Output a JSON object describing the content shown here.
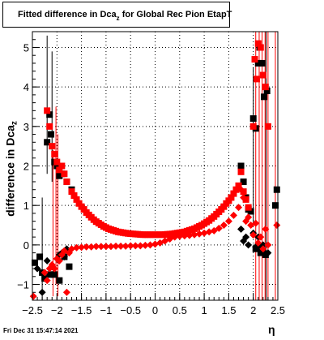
{
  "title": "Fitted difference in Dca",
  "title_subscript": "z",
  "title_suffix": " for Global Rec Pion EtapT",
  "ylabel": "difference in Dca",
  "ylabel_subscript": "z",
  "xlabel": "η",
  "datestamp": "Fri Dec 31 15:47:14 2021",
  "colors": {
    "series_black": "#000000",
    "series_red": "#ff0000",
    "grid": "#000000"
  },
  "chart_data": {
    "type": "scatter",
    "xlim": [
      -2.5,
      2.5
    ],
    "ylim": [
      -1.4,
      5.4
    ],
    "grid": true,
    "x_ticks": [
      -2.5,
      -2,
      -1.5,
      -1,
      -0.5,
      0,
      0.5,
      1,
      1.5,
      2,
      2.5
    ],
    "x_tick_labels": [
      "−2.5",
      "−2",
      "−1.5",
      "−1",
      "−0.5",
      "0",
      "0.5",
      "1",
      "1.5",
      "2",
      "2.5"
    ],
    "y_ticks": [
      -1,
      0,
      1,
      2,
      3,
      4,
      5
    ],
    "y_tick_labels": [
      "−1",
      "0",
      "1",
      "2",
      "3",
      "4",
      "5"
    ],
    "series": [
      {
        "color": "#000000",
        "marker": "square",
        "points": [
          [
            -2.45,
            -0.45
          ],
          [
            -2.35,
            -0.3
          ],
          [
            -2.3,
            -0.7
          ],
          [
            -2.25,
            -0.85
          ],
          [
            -2.2,
            2.6
          ],
          [
            -2.15,
            3.3
          ],
          [
            -2.12,
            2.8
          ],
          [
            -2.05,
            2.1
          ],
          [
            -2.0,
            2.0
          ],
          [
            -1.95,
            1.75
          ],
          [
            -1.9,
            1.8
          ],
          [
            -1.8,
            1.6
          ],
          [
            -1.7,
            1.4
          ],
          [
            -2.15,
            -0.75
          ],
          [
            -2.05,
            -0.75
          ],
          [
            -1.95,
            -0.9
          ],
          [
            -1.85,
            -0.3
          ],
          [
            -1.75,
            -0.55
          ],
          [
            1.75,
            2.0
          ],
          [
            1.8,
            1.6
          ],
          [
            1.85,
            1.2
          ],
          [
            1.9,
            0.9
          ],
          [
            1.95,
            0.85
          ],
          [
            2.0,
            3.2
          ],
          [
            2.05,
            2.95
          ],
          [
            2.1,
            4.6
          ],
          [
            2.13,
            5.0
          ],
          [
            2.18,
            4.6
          ],
          [
            2.22,
            3.75
          ],
          [
            2.28,
            3.9
          ],
          [
            2.05,
            -0.1
          ],
          [
            2.1,
            -0.05
          ],
          [
            2.15,
            -0.2
          ],
          [
            2.2,
            -0.15
          ],
          [
            2.25,
            -0.25
          ],
          [
            2.48,
            1.4
          ],
          [
            2.45,
            1.0
          ]
        ]
      },
      {
        "color": "#ff0000",
        "marker": "square",
        "points": [
          [
            -2.2,
            3.4
          ],
          [
            -2.15,
            3.0
          ],
          [
            -2.1,
            2.5
          ],
          [
            -2.05,
            2.3
          ],
          [
            -2.0,
            2.1
          ],
          [
            -1.95,
            1.9
          ],
          [
            -1.9,
            2.0
          ],
          [
            -1.85,
            1.8
          ],
          [
            -1.8,
            1.6
          ],
          [
            -1.7,
            1.35
          ],
          [
            -1.65,
            1.25
          ],
          [
            -1.6,
            1.15
          ],
          [
            -1.55,
            1.05
          ],
          [
            -1.5,
            0.97
          ],
          [
            -1.45,
            0.9
          ],
          [
            -1.4,
            0.82
          ],
          [
            -1.35,
            0.76
          ],
          [
            -1.3,
            0.7
          ],
          [
            -1.25,
            0.64
          ],
          [
            -1.2,
            0.59
          ],
          [
            -1.15,
            0.55
          ],
          [
            -1.1,
            0.51
          ],
          [
            -1.05,
            0.47
          ],
          [
            -1.0,
            0.44
          ],
          [
            -0.95,
            0.41
          ],
          [
            -0.9,
            0.39
          ],
          [
            -0.85,
            0.37
          ],
          [
            -0.8,
            0.35
          ],
          [
            -0.75,
            0.33
          ],
          [
            -0.7,
            0.32
          ],
          [
            -0.65,
            0.31
          ],
          [
            -0.6,
            0.3
          ],
          [
            -0.55,
            0.29
          ],
          [
            -0.5,
            0.285
          ],
          [
            -0.45,
            0.28
          ],
          [
            -0.4,
            0.275
          ],
          [
            -0.35,
            0.27
          ],
          [
            -0.3,
            0.265
          ],
          [
            -0.25,
            0.26
          ],
          [
            -0.2,
            0.26
          ],
          [
            -0.15,
            0.26
          ],
          [
            -0.1,
            0.26
          ],
          [
            -0.05,
            0.26
          ],
          [
            0.0,
            0.26
          ],
          [
            0.05,
            0.26
          ],
          [
            0.1,
            0.26
          ],
          [
            0.15,
            0.26
          ],
          [
            0.2,
            0.265
          ],
          [
            0.25,
            0.27
          ],
          [
            0.3,
            0.275
          ],
          [
            0.35,
            0.28
          ],
          [
            0.4,
            0.29
          ],
          [
            0.45,
            0.3
          ],
          [
            0.5,
            0.31
          ],
          [
            0.55,
            0.32
          ],
          [
            0.6,
            0.33
          ],
          [
            0.65,
            0.35
          ],
          [
            0.7,
            0.37
          ],
          [
            0.75,
            0.39
          ],
          [
            0.8,
            0.41
          ],
          [
            0.85,
            0.44
          ],
          [
            0.9,
            0.47
          ],
          [
            0.95,
            0.5
          ],
          [
            1.0,
            0.54
          ],
          [
            1.05,
            0.58
          ],
          [
            1.1,
            0.62
          ],
          [
            1.15,
            0.67
          ],
          [
            1.2,
            0.72
          ],
          [
            1.25,
            0.78
          ],
          [
            1.3,
            0.84
          ],
          [
            1.35,
            0.9
          ],
          [
            1.4,
            0.97
          ],
          [
            1.45,
            1.05
          ],
          [
            1.5,
            1.12
          ],
          [
            1.55,
            1.2
          ],
          [
            1.6,
            1.3
          ],
          [
            1.65,
            1.4
          ],
          [
            1.7,
            1.5
          ],
          [
            1.75,
            1.85
          ],
          [
            1.8,
            1.35
          ],
          [
            1.85,
            1.15
          ],
          [
            1.9,
            0.95
          ],
          [
            2.0,
            3.0
          ],
          [
            2.03,
            4.7
          ],
          [
            2.07,
            4.2
          ],
          [
            2.1,
            5.1
          ],
          [
            2.15,
            5.0
          ],
          [
            2.2,
            4.3
          ],
          [
            2.25,
            4.0
          ],
          [
            2.3,
            3.0
          ]
        ]
      },
      {
        "color": "#000000",
        "marker": "diamond",
        "points": [
          [
            -2.4,
            -0.6
          ],
          [
            -2.3,
            -1.2
          ],
          [
            -2.2,
            -0.4
          ],
          [
            -2.1,
            -0.55
          ],
          [
            -2.0,
            -0.35
          ],
          [
            -1.95,
            -0.25
          ],
          [
            -1.9,
            -0.2
          ],
          [
            -1.85,
            -0.3
          ],
          [
            -1.8,
            -0.1
          ],
          [
            1.75,
            0.4
          ],
          [
            1.8,
            0.1
          ],
          [
            1.85,
            0.2
          ],
          [
            1.9,
            0.0
          ],
          [
            2.0,
            0.3
          ],
          [
            2.05,
            -0.05
          ],
          [
            2.1,
            0.2
          ],
          [
            2.2,
            0.0
          ],
          [
            2.3,
            -0.2
          ]
        ]
      },
      {
        "color": "#ff0000",
        "marker": "diamond",
        "points": [
          [
            -2.48,
            -1.3
          ],
          [
            -2.25,
            -0.7
          ],
          [
            -2.2,
            -0.9
          ],
          [
            -2.15,
            -0.6
          ],
          [
            -2.1,
            -0.5
          ],
          [
            -2.05,
            -0.6
          ],
          [
            -2.0,
            -0.35
          ],
          [
            -1.95,
            -0.4
          ],
          [
            -1.9,
            -0.25
          ],
          [
            -1.85,
            -0.15
          ],
          [
            -1.8,
            -1.2
          ],
          [
            -1.75,
            -0.2
          ],
          [
            -1.7,
            -0.1
          ],
          [
            -1.6,
            -0.07
          ],
          [
            -1.5,
            -0.06
          ],
          [
            -1.4,
            -0.05
          ],
          [
            -1.3,
            -0.05
          ],
          [
            -1.2,
            -0.04
          ],
          [
            -1.1,
            -0.04
          ],
          [
            -1.0,
            -0.04
          ],
          [
            -0.9,
            -0.04
          ],
          [
            -0.8,
            -0.03
          ],
          [
            -0.7,
            -0.03
          ],
          [
            -0.6,
            -0.03
          ],
          [
            -0.5,
            -0.02
          ],
          [
            -0.4,
            -0.02
          ],
          [
            -0.3,
            -0.02
          ],
          [
            -0.2,
            -0.01
          ],
          [
            -0.1,
            0.0
          ],
          [
            0.0,
            0.02
          ],
          [
            0.1,
            0.05
          ],
          [
            0.2,
            0.1
          ],
          [
            0.3,
            0.15
          ],
          [
            0.4,
            0.2
          ],
          [
            0.5,
            0.22
          ],
          [
            0.6,
            0.23
          ],
          [
            0.7,
            0.24
          ],
          [
            0.8,
            0.26
          ],
          [
            0.9,
            0.28
          ],
          [
            1.0,
            0.3
          ],
          [
            1.1,
            0.33
          ],
          [
            1.2,
            0.36
          ],
          [
            1.3,
            0.42
          ],
          [
            1.4,
            0.5
          ],
          [
            1.5,
            0.6
          ],
          [
            1.6,
            0.75
          ],
          [
            1.7,
            0.95
          ],
          [
            1.75,
            1.4
          ],
          [
            1.8,
            1.2
          ],
          [
            1.85,
            0.6
          ],
          [
            1.9,
            0.7
          ],
          [
            1.95,
            0.5
          ],
          [
            2.0,
            0.25
          ],
          [
            2.05,
            0.55
          ],
          [
            2.1,
            0.05
          ],
          [
            2.15,
            0.2
          ],
          [
            2.2,
            -0.1
          ],
          [
            2.25,
            0.4
          ],
          [
            2.3,
            0.0
          ],
          [
            2.48,
            0.5
          ]
        ]
      }
    ],
    "error_bars": [
      {
        "x": -2.2,
        "ylo": 1.8,
        "yhi": 5.3,
        "color": "#000000"
      },
      {
        "x": -2.1,
        "ylo": 1.6,
        "yhi": 4.9,
        "color": "#000000"
      },
      {
        "x": -2.08,
        "ylo": -1.3,
        "yhi": 2.4,
        "color": "#ff0000"
      },
      {
        "x": -2.02,
        "ylo": -1.0,
        "yhi": 3.5,
        "color": "#ff0000"
      },
      {
        "x": -1.98,
        "ylo": -1.3,
        "yhi": 2.8,
        "color": "#ff0000"
      },
      {
        "x": -2.3,
        "ylo": -1.4,
        "yhi": 1.2,
        "color": "#000000"
      },
      {
        "x": 2.05,
        "ylo": -1.4,
        "yhi": 5.4,
        "color": "#ff0000"
      },
      {
        "x": 2.12,
        "ylo": -1.4,
        "yhi": 5.4,
        "color": "#ff0000"
      },
      {
        "x": 2.18,
        "ylo": -1.4,
        "yhi": 5.4,
        "color": "#ff0000"
      },
      {
        "x": 2.24,
        "ylo": -1.4,
        "yhi": 5.4,
        "color": "#ff0000"
      },
      {
        "x": 2.3,
        "ylo": -1.4,
        "yhi": 5.4,
        "color": "#ff0000"
      },
      {
        "x": 2.45,
        "ylo": -1.4,
        "yhi": 5.4,
        "color": "#ff0000"
      },
      {
        "x": 2.0,
        "ylo": 0.5,
        "yhi": 4.5,
        "color": "#000000"
      },
      {
        "x": 2.26,
        "ylo": -1.4,
        "yhi": 5.4,
        "color": "#000000"
      }
    ]
  }
}
